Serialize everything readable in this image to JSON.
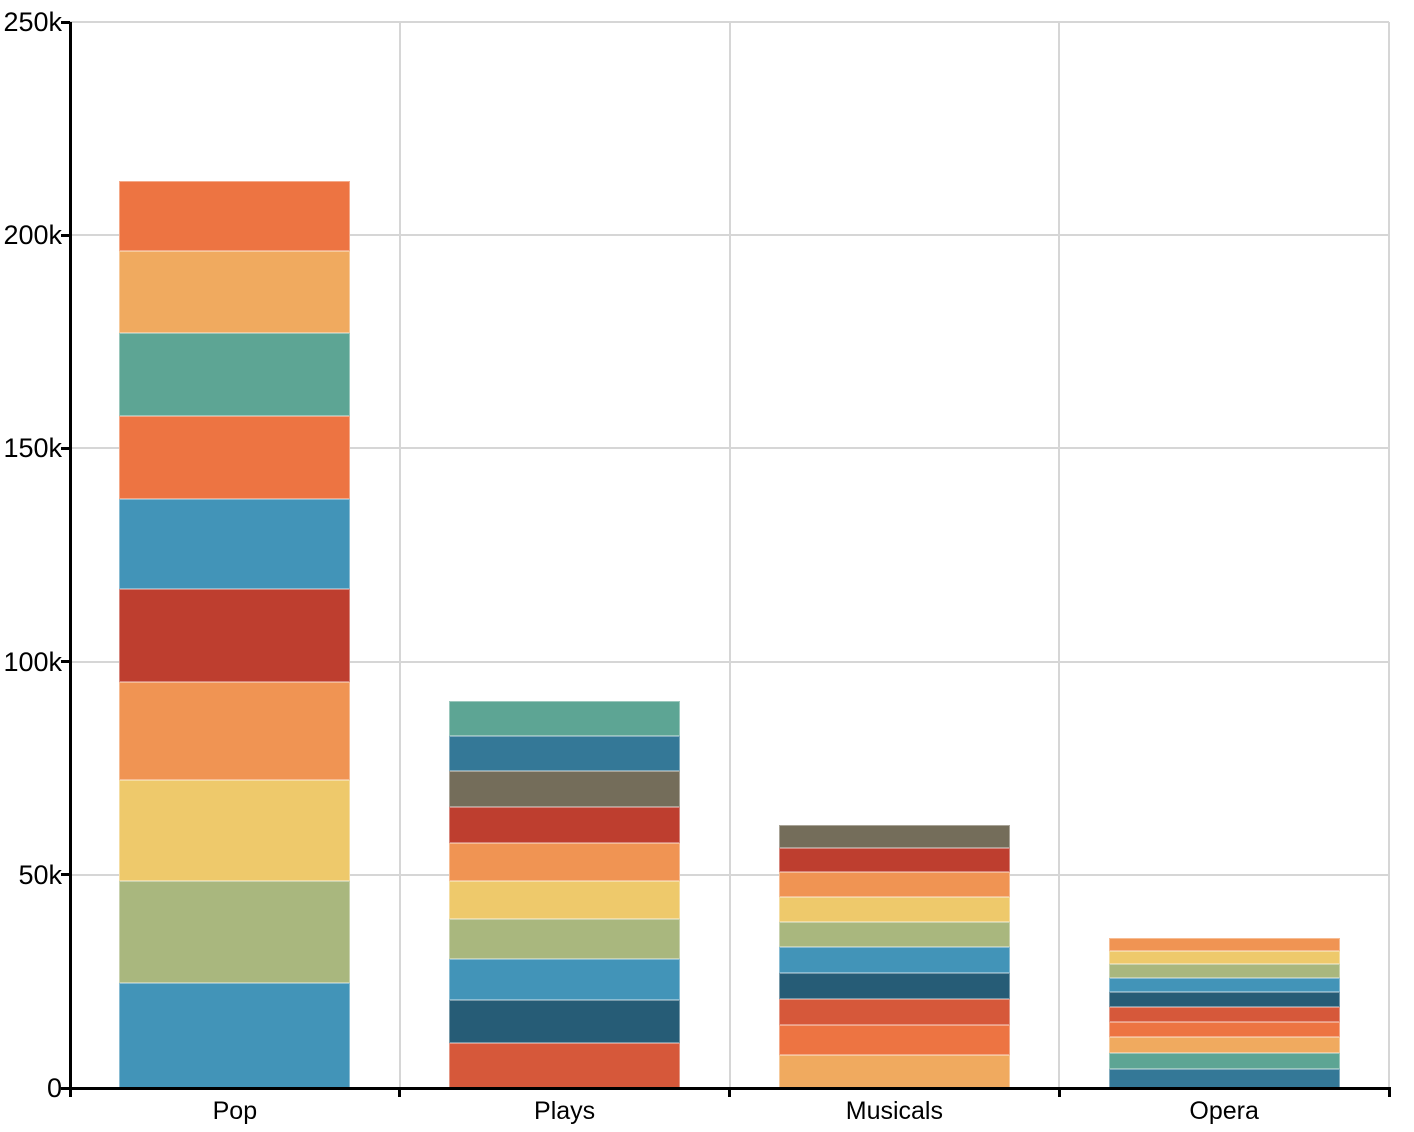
{
  "chart_data": {
    "type": "bar",
    "variant": "stacked",
    "title": "",
    "xlabel": "",
    "ylabel": "",
    "categories": [
      "Pop",
      "Plays",
      "Musicals",
      "Opera"
    ],
    "ylim": [
      0,
      250000
    ],
    "yticks": [
      0,
      50000,
      100000,
      150000,
      200000,
      250000
    ],
    "ytick_labels": [
      "0",
      "50k",
      "100k",
      "150k",
      "200k",
      "250k"
    ],
    "grid": true,
    "legend": "none",
    "grid_color": "#D6D6D6",
    "axis_color": "#000000",
    "background_color": "#FFFFFF",
    "bars": [
      {
        "category": "Pop",
        "total": 212600,
        "segments": [
          {
            "color": "#4294B8",
            "value": 24600
          },
          {
            "color": "#A9B77E",
            "value": 23900
          },
          {
            "color": "#EEC96B",
            "value": 23700
          },
          {
            "color": "#F09453",
            "value": 23000
          },
          {
            "color": "#BE3E2F",
            "value": 21800
          },
          {
            "color": "#4294B8",
            "value": 21100
          },
          {
            "color": "#ED7442",
            "value": 19500
          },
          {
            "color": "#5DA594",
            "value": 19400
          },
          {
            "color": "#F0AA5F",
            "value": 19200
          },
          {
            "color": "#ED7442",
            "value": 16400
          }
        ]
      },
      {
        "category": "Plays",
        "total": 90800,
        "segments": [
          {
            "color": "#D6583A",
            "value": 10500
          },
          {
            "color": "#265C76",
            "value": 10100
          },
          {
            "color": "#4294B8",
            "value": 9600
          },
          {
            "color": "#A9B77E",
            "value": 9400
          },
          {
            "color": "#EEC96B",
            "value": 9000
          },
          {
            "color": "#F09453",
            "value": 8800
          },
          {
            "color": "#BE3E2F",
            "value": 8500
          },
          {
            "color": "#746D5A",
            "value": 8400
          },
          {
            "color": "#347897",
            "value": 8300
          },
          {
            "color": "#5DA594",
            "value": 8200
          }
        ]
      },
      {
        "category": "Musicals",
        "total": 61600,
        "segments": [
          {
            "color": "#F0AA5F",
            "value": 7700
          },
          {
            "color": "#ED7442",
            "value": 7000
          },
          {
            "color": "#D6583A",
            "value": 6200
          },
          {
            "color": "#265C76",
            "value": 6100
          },
          {
            "color": "#4294B8",
            "value": 6000
          },
          {
            "color": "#A9B77E",
            "value": 5900
          },
          {
            "color": "#EEC96B",
            "value": 5900
          },
          {
            "color": "#F09453",
            "value": 5800
          },
          {
            "color": "#BE3E2F",
            "value": 5600
          },
          {
            "color": "#746D5A",
            "value": 5400
          }
        ]
      },
      {
        "category": "Opera",
        "total": 35200,
        "segments": [
          {
            "color": "#347897",
            "value": 4400
          },
          {
            "color": "#5DA594",
            "value": 3800
          },
          {
            "color": "#F0AA5F",
            "value": 3700
          },
          {
            "color": "#ED7442",
            "value": 3600
          },
          {
            "color": "#D6583A",
            "value": 3500
          },
          {
            "color": "#265C76",
            "value": 3500
          },
          {
            "color": "#4294B8",
            "value": 3400
          },
          {
            "color": "#A9B77E",
            "value": 3200
          },
          {
            "color": "#EEC96B",
            "value": 3100
          },
          {
            "color": "#F09453",
            "value": 3000
          }
        ]
      }
    ]
  }
}
